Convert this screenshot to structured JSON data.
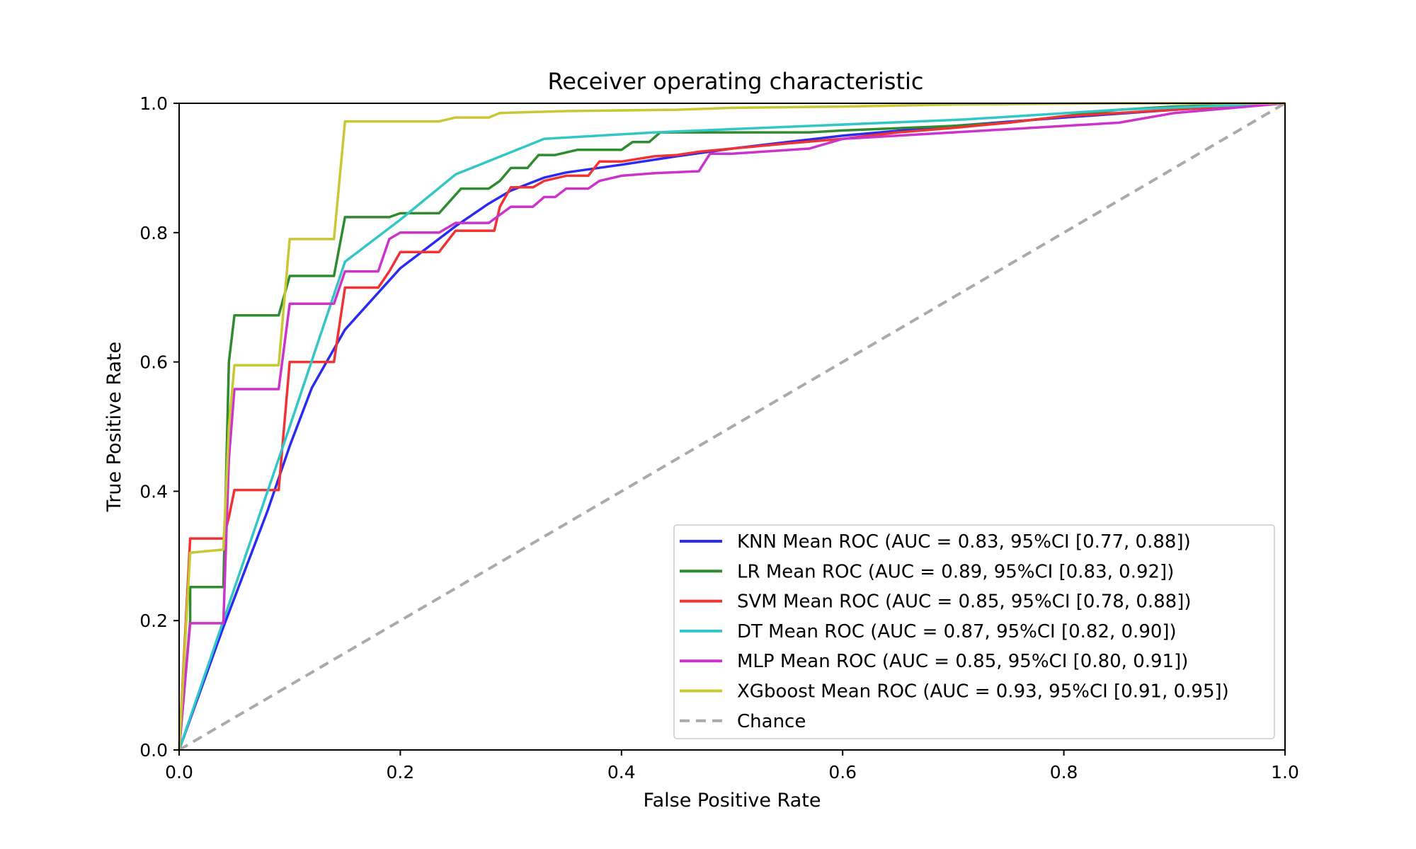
{
  "chart_data": {
    "type": "line",
    "title": "Receiver operating characteristic",
    "xlabel": "False Positive Rate",
    "ylabel": "True Positive Rate",
    "xlim": [
      0.0,
      1.0
    ],
    "ylim": [
      0.0,
      1.0
    ],
    "x_ticks": [
      "0.0",
      "0.2",
      "0.4",
      "0.6",
      "0.8",
      "1.0"
    ],
    "y_ticks": [
      "0.0",
      "0.2",
      "0.4",
      "0.6",
      "0.8",
      "1.0"
    ],
    "grid": false,
    "legend_position": "lower-right",
    "series": [
      {
        "name": "KNN Mean ROC (AUC = 0.83, 95%CI [0.77, 0.88])",
        "color": "#2b2bf0",
        "x": [
          0,
          0.04,
          0.06,
          0.08,
          0.1,
          0.12,
          0.15,
          0.2,
          0.25,
          0.28,
          0.3,
          0.33,
          0.35,
          0.4,
          0.45,
          0.5,
          0.55,
          0.6,
          0.7,
          0.8,
          0.9,
          1.0
        ],
        "y": [
          0,
          0.19,
          0.28,
          0.37,
          0.47,
          0.56,
          0.65,
          0.745,
          0.81,
          0.845,
          0.865,
          0.885,
          0.893,
          0.905,
          0.918,
          0.93,
          0.94,
          0.95,
          0.965,
          0.978,
          0.99,
          1.0
        ]
      },
      {
        "name": "LR Mean ROC (AUC = 0.89, 95%CI [0.83, 0.92])",
        "color": "#2e8b2e",
        "x": [
          0,
          0.01,
          0.01,
          0.04,
          0.045,
          0.05,
          0.09,
          0.1,
          0.14,
          0.15,
          0.19,
          0.2,
          0.235,
          0.255,
          0.28,
          0.29,
          0.3,
          0.315,
          0.325,
          0.34,
          0.36,
          0.4,
          0.41,
          0.425,
          0.435,
          0.5,
          0.57,
          0.6,
          0.7,
          0.75,
          0.8,
          0.85,
          0.9,
          1.0
        ],
        "y": [
          0,
          0.2,
          0.252,
          0.252,
          0.6,
          0.672,
          0.672,
          0.733,
          0.733,
          0.824,
          0.824,
          0.83,
          0.83,
          0.868,
          0.868,
          0.88,
          0.9,
          0.9,
          0.92,
          0.92,
          0.928,
          0.928,
          0.94,
          0.94,
          0.955,
          0.955,
          0.955,
          0.958,
          0.965,
          0.97,
          0.98,
          0.99,
          0.995,
          1.0
        ]
      },
      {
        "name": "SVM Mean ROC (AUC = 0.85, 95%CI [0.78, 0.88])",
        "color": "#f03232",
        "x": [
          0,
          0.01,
          0.01,
          0.04,
          0.045,
          0.05,
          0.09,
          0.1,
          0.14,
          0.15,
          0.18,
          0.19,
          0.2,
          0.235,
          0.25,
          0.285,
          0.29,
          0.3,
          0.32,
          0.33,
          0.35,
          0.37,
          0.38,
          0.4,
          0.43,
          0.45,
          0.47,
          0.5,
          0.55,
          0.6,
          0.65,
          0.7,
          0.75,
          0.8,
          0.9,
          1.0
        ],
        "y": [
          0,
          0.327,
          0.327,
          0.327,
          0.36,
          0.402,
          0.402,
          0.6,
          0.6,
          0.715,
          0.715,
          0.74,
          0.77,
          0.77,
          0.803,
          0.803,
          0.84,
          0.87,
          0.87,
          0.88,
          0.888,
          0.888,
          0.91,
          0.91,
          0.918,
          0.92,
          0.925,
          0.93,
          0.938,
          0.945,
          0.955,
          0.962,
          0.97,
          0.98,
          0.99,
          1.0
        ]
      },
      {
        "name": "DT Mean ROC (AUC = 0.87, 95%CI [0.82, 0.90])",
        "color": "#33c6c6",
        "x": [
          0,
          0.04,
          0.1,
          0.15,
          0.2,
          0.25,
          0.33,
          0.43,
          0.57,
          0.71,
          0.85,
          1.0
        ],
        "y": [
          0,
          0.2,
          0.5,
          0.755,
          0.82,
          0.89,
          0.945,
          0.955,
          0.965,
          0.975,
          0.99,
          1.0
        ]
      },
      {
        "name": "MLP Mean ROC (AUC = 0.85, 95%CI [0.80, 0.91])",
        "color": "#cc33cc",
        "x": [
          0,
          0.01,
          0.01,
          0.04,
          0.045,
          0.05,
          0.09,
          0.1,
          0.14,
          0.15,
          0.18,
          0.19,
          0.2,
          0.235,
          0.25,
          0.28,
          0.3,
          0.32,
          0.33,
          0.34,
          0.35,
          0.37,
          0.38,
          0.4,
          0.43,
          0.47,
          0.48,
          0.5,
          0.57,
          0.6,
          0.65,
          0.7,
          0.75,
          0.8,
          0.85,
          0.9,
          1.0
        ],
        "y": [
          0,
          0.196,
          0.196,
          0.196,
          0.45,
          0.558,
          0.558,
          0.69,
          0.69,
          0.74,
          0.74,
          0.79,
          0.8,
          0.8,
          0.815,
          0.815,
          0.84,
          0.84,
          0.855,
          0.855,
          0.868,
          0.868,
          0.88,
          0.888,
          0.892,
          0.895,
          0.922,
          0.922,
          0.93,
          0.945,
          0.95,
          0.955,
          0.96,
          0.965,
          0.97,
          0.985,
          1.0
        ]
      },
      {
        "name": "XGboost Mean ROC (AUC = 0.93, 95%CI [0.91, 0.95])",
        "color": "#c8c832",
        "x": [
          0,
          0.01,
          0.01,
          0.04,
          0.045,
          0.05,
          0.09,
          0.1,
          0.14,
          0.15,
          0.2,
          0.235,
          0.25,
          0.28,
          0.29,
          0.35,
          0.45,
          0.5,
          0.6,
          0.7,
          0.85,
          1.0
        ],
        "y": [
          0,
          0.305,
          0.305,
          0.31,
          0.5,
          0.595,
          0.595,
          0.79,
          0.79,
          0.972,
          0.972,
          0.972,
          0.978,
          0.978,
          0.985,
          0.988,
          0.99,
          0.993,
          0.995,
          0.998,
          1.0,
          1.0
        ]
      },
      {
        "name": "Chance",
        "color": "#aaaaaa",
        "dashed": true,
        "x": [
          0,
          1.0
        ],
        "y": [
          0,
          1.0
        ]
      }
    ]
  }
}
